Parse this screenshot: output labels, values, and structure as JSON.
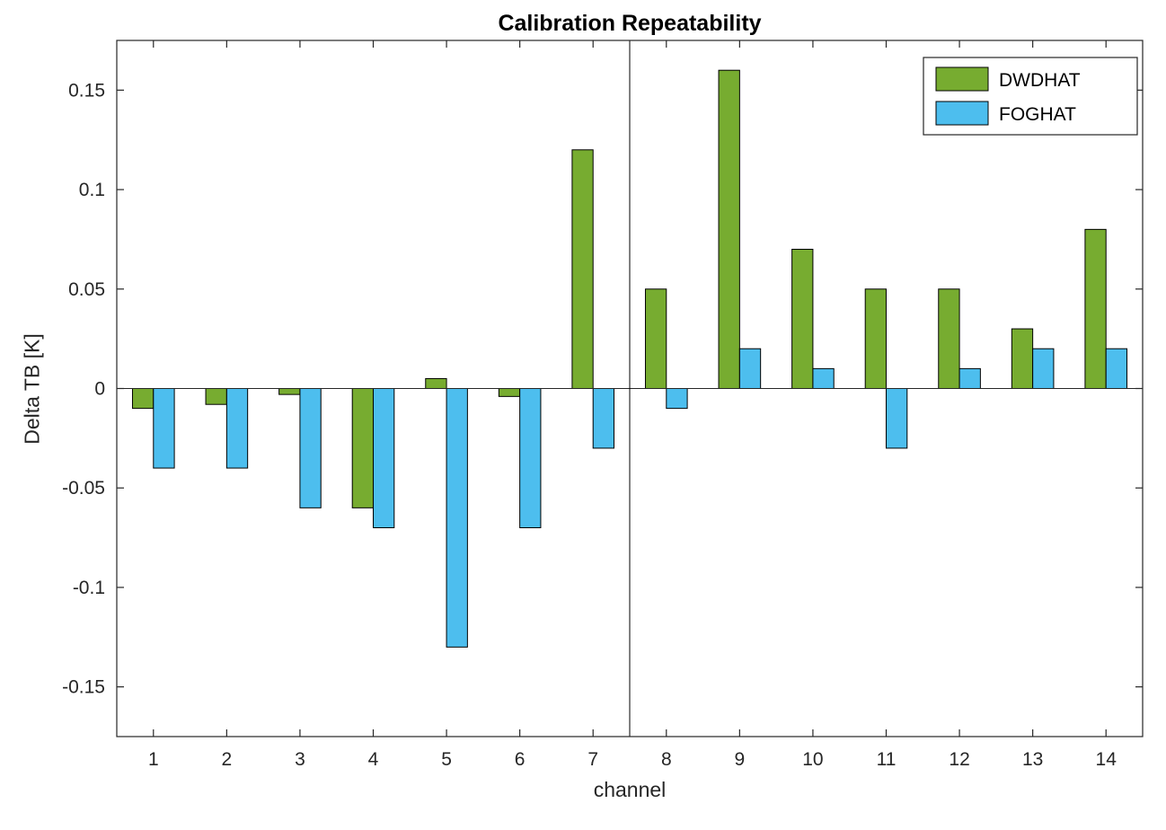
{
  "chart_data": {
    "type": "bar",
    "title": "Calibration Repeatability",
    "xlabel": "channel",
    "ylabel": "Delta TB [K]",
    "xlim": [
      0.5,
      14.5
    ],
    "ylim": [
      -0.175,
      0.175
    ],
    "yticks": [
      -0.15,
      -0.1,
      -0.05,
      0,
      0.05,
      0.1,
      0.15
    ],
    "ytick_labels": [
      "-0.15",
      "-0.1",
      "-0.05",
      "0",
      "0.05",
      "0.1",
      "0.15"
    ],
    "categories": [
      "1",
      "2",
      "3",
      "4",
      "5",
      "6",
      "7",
      "8",
      "9",
      "10",
      "11",
      "12",
      "13",
      "14"
    ],
    "separator_x": 7.5,
    "grid": false,
    "axis_color": "#262626",
    "bar_edge_color": "#000000",
    "series": [
      {
        "name": "DWDHAT",
        "color": "#77AC30",
        "values": [
          -0.01,
          -0.008,
          -0.003,
          -0.06,
          0.005,
          -0.004,
          0.12,
          0.05,
          0.16,
          0.07,
          0.05,
          0.05,
          0.03,
          0.08
        ]
      },
      {
        "name": "FOGHAT",
        "color": "#4DBEEE",
        "values": [
          -0.04,
          -0.04,
          -0.06,
          -0.07,
          -0.13,
          -0.07,
          -0.03,
          -0.01,
          0.02,
          0.01,
          -0.03,
          0.01,
          0.02,
          0.02
        ]
      }
    ],
    "legend": {
      "position": "top-right",
      "entries": [
        "DWDHAT",
        "FOGHAT"
      ]
    }
  }
}
